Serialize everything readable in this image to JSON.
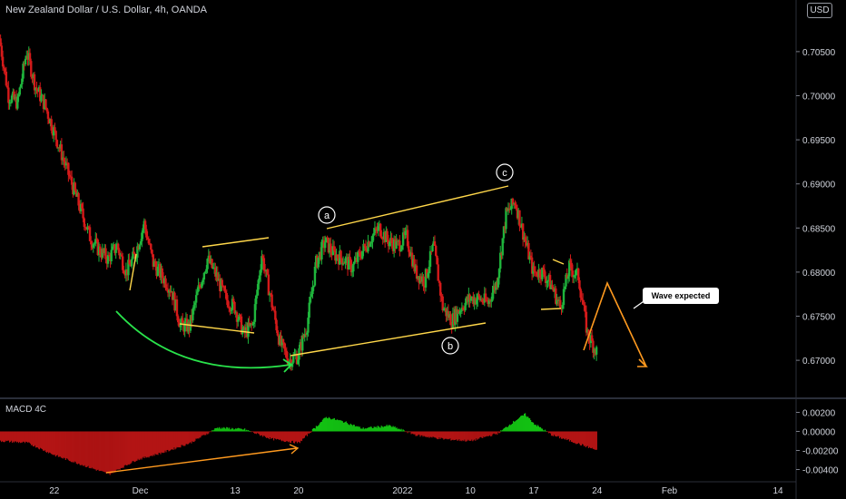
{
  "header": {
    "title": "New Zealand Dollar / U.S. Dollar, 4h, OANDA",
    "currency": "USD"
  },
  "macd": {
    "title": "MACD 4C"
  },
  "callout": {
    "text": "Wave expected"
  },
  "labels": {
    "a": "a",
    "b": "b",
    "c": "c"
  },
  "colors": {
    "up": "#1fb53c",
    "down": "#d41a1a",
    "pattern": "#ffd74a",
    "projection": "#ff9a1f",
    "arc": "#29e34b",
    "macd_up": "#13c213",
    "macd_down": "#b31414"
  },
  "chart_data": [
    {
      "type": "line",
      "name": "price",
      "ylim": [
        0.666,
        0.709
      ],
      "xlim": [
        0,
        88
      ],
      "y_ticks": [
        "0.70500",
        "0.70000",
        "0.69500",
        "0.69000",
        "0.68500",
        "0.68000",
        "0.67500",
        "0.67000"
      ],
      "x_ticks": [
        {
          "label": "22",
          "x": 6
        },
        {
          "label": "Dec",
          "x": 15.5
        },
        {
          "label": "13",
          "x": 26
        },
        {
          "label": "20",
          "x": 33
        },
        {
          "label": "2022",
          "x": 44.5
        },
        {
          "label": "10",
          "x": 52
        },
        {
          "label": "17",
          "x": 59
        },
        {
          "label": "24",
          "x": 66
        },
        {
          "label": "Feb",
          "x": 74
        },
        {
          "label": "14",
          "x": 86
        }
      ],
      "x": [
        0,
        1,
        2,
        3,
        4,
        5,
        6,
        7,
        8,
        9,
        10,
        11,
        12,
        13,
        14,
        15,
        16,
        17,
        18,
        19,
        20,
        21,
        22,
        23,
        24,
        25,
        26,
        27,
        28,
        29,
        30,
        31,
        32,
        33,
        34,
        35,
        36,
        37,
        38,
        39,
        40,
        41,
        42,
        43,
        44,
        45,
        46,
        47,
        48,
        49,
        50,
        51,
        52,
        53,
        54,
        55,
        56,
        57,
        58,
        59,
        60,
        61,
        62,
        63,
        64,
        65,
        66
      ],
      "y": [
        0.7065,
        0.7,
        0.6992,
        0.705,
        0.701,
        0.699,
        0.696,
        0.693,
        0.69,
        0.687,
        0.684,
        0.6825,
        0.6815,
        0.683,
        0.68,
        0.682,
        0.6855,
        0.681,
        0.6795,
        0.678,
        0.674,
        0.6738,
        0.678,
        0.6815,
        0.6795,
        0.677,
        0.676,
        0.673,
        0.674,
        0.682,
        0.677,
        0.672,
        0.67,
        0.6705,
        0.674,
        0.681,
        0.6835,
        0.682,
        0.6815,
        0.6805,
        0.6822,
        0.6838,
        0.685,
        0.6835,
        0.683,
        0.684,
        0.68,
        0.679,
        0.683,
        0.676,
        0.6745,
        0.676,
        0.677,
        0.677,
        0.6765,
        0.679,
        0.6865,
        0.688,
        0.684,
        0.68,
        0.68,
        0.6785,
        0.676,
        0.6805,
        0.6795,
        0.673,
        0.671
      ]
    },
    {
      "type": "bar",
      "name": "macd-histogram",
      "ylim": [
        -0.005,
        0.003
      ],
      "y_ticks": [
        "0.00200",
        "0.00000",
        "-0.00200",
        "-0.00400"
      ],
      "x": [
        0,
        3,
        6,
        9,
        12,
        15,
        18,
        21,
        24,
        27,
        30,
        33,
        36,
        38,
        40,
        43,
        46,
        49,
        52,
        55,
        57,
        58,
        59,
        61,
        63,
        66
      ],
      "values": [
        -0.001,
        -0.0012,
        -0.0025,
        -0.0035,
        -0.0045,
        -0.003,
        -0.0022,
        -0.0012,
        0.0004,
        0.0002,
        -0.0008,
        -0.0012,
        0.0015,
        0.001,
        0.0003,
        0.0006,
        -0.0004,
        -0.0008,
        -0.001,
        -0.0002,
        0.0012,
        0.0018,
        0.0008,
        -0.0004,
        -0.001,
        -0.002
      ]
    }
  ]
}
